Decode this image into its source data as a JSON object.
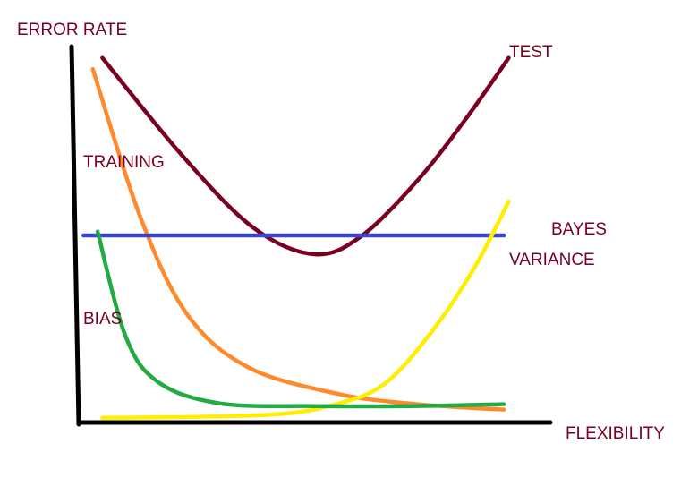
{
  "chart_data": {
    "type": "line",
    "title": "",
    "xlabel": "FLEXIBILITY",
    "ylabel": "ERROR RATE",
    "xlim": [
      0,
      100
    ],
    "ylim": [
      0,
      100
    ],
    "grid": false,
    "legend": "none",
    "series": [
      {
        "name": "TEST",
        "color": "#7a0020",
        "points": [
          [
            5,
            97
          ],
          [
            22,
            71
          ],
          [
            37,
            52
          ],
          [
            50,
            45
          ],
          [
            60,
            50
          ],
          [
            72,
            65
          ],
          [
            82,
            81
          ],
          [
            91,
            97
          ]
        ]
      },
      {
        "name": "TRAINING",
        "color": "#ff8a2c",
        "points": [
          [
            3,
            94
          ],
          [
            13,
            55
          ],
          [
            23,
            29
          ],
          [
            36,
            15
          ],
          [
            55,
            8
          ],
          [
            70,
            5.5
          ],
          [
            82,
            4.4
          ],
          [
            90,
            3.9
          ]
        ]
      },
      {
        "name": "BAYES",
        "color": "#3b46d6",
        "points": [
          [
            1,
            50
          ],
          [
            90,
            50
          ]
        ]
      },
      {
        "name": "VARIANCE",
        "color": "#ffee00",
        "points": [
          [
            5,
            1.7
          ],
          [
            40,
            2.5
          ],
          [
            55,
            5.5
          ],
          [
            65,
            11
          ],
          [
            75,
            25
          ],
          [
            84,
            42
          ],
          [
            91,
            59
          ]
        ]
      },
      {
        "name": "BIAS",
        "color": "#22aa44",
        "points": [
          [
            4,
            51
          ],
          [
            10,
            23
          ],
          [
            17,
            11
          ],
          [
            30,
            5.5
          ],
          [
            50,
            4.8
          ],
          [
            70,
            4.8
          ],
          [
            90,
            5.3
          ]
        ]
      }
    ]
  },
  "colors": {
    "label_text": "#7a0020",
    "axis": "#000000"
  }
}
